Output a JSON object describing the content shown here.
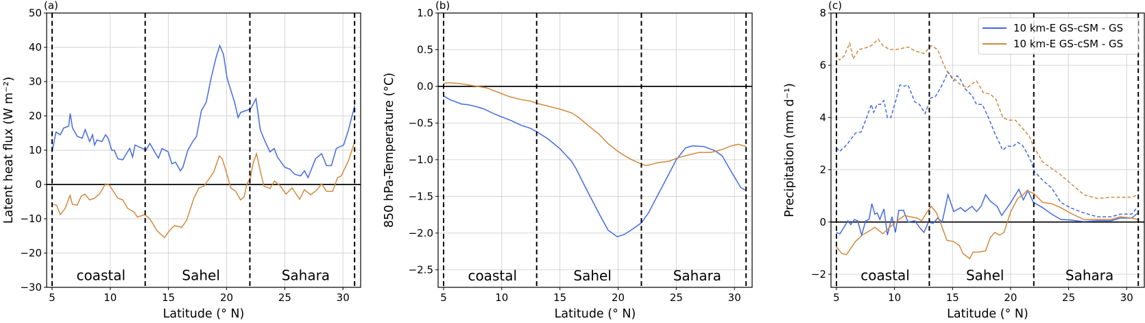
{
  "colors": {
    "blue": "#4169e1",
    "orange": "#d2873c"
  },
  "chart_data": [
    {
      "type": "line",
      "panel_label": "(a)",
      "xlabel": "Latitude (° N)",
      "ylabel": "Latent heat flux (W m⁻²)",
      "xlim": [
        4.53,
        31.52
      ],
      "ylim": [
        -30,
        50
      ],
      "xticks": [
        5,
        10,
        15,
        20,
        25,
        30
      ],
      "yticks": [
        -30,
        -20,
        -10,
        0,
        10,
        20,
        30,
        40,
        50
      ],
      "ytick_labels": [
        "−30",
        "−20",
        "−10",
        "0",
        "10",
        "20",
        "30",
        "40",
        "50"
      ],
      "grid": true,
      "zero_line": 0,
      "region_boundaries": [
        5,
        13,
        22,
        31
      ],
      "regions": [
        {
          "label": "coastal",
          "x": 9.2,
          "y": -26.5
        },
        {
          "label": "Sahel",
          "x": 17.8,
          "y": -26.5
        },
        {
          "label": "Sahara",
          "x": 26.8,
          "y": -26.5
        }
      ],
      "series": [
        {
          "name": "10 km-E GS-cSM - GS",
          "color": "blue",
          "dash": false,
          "x": [
            5.0,
            5.34,
            5.7,
            6.01,
            6.43,
            6.56,
            6.75,
            7.17,
            7.59,
            7.85,
            8.23,
            8.48,
            8.65,
            8.86,
            9.28,
            9.6,
            9.81,
            10.13,
            10.34,
            10.65,
            11.08,
            11.39,
            11.67,
            11.92,
            12.13,
            12.76,
            13.08,
            13.4,
            13.82,
            14.14,
            14.45,
            14.98,
            15.3,
            15.61,
            16.03,
            16.24,
            16.67,
            17.09,
            17.41,
            17.83,
            18.25,
            18.67,
            19.09,
            19.41,
            19.73,
            20.04,
            20.36,
            20.68,
            20.99,
            21.2,
            21.62,
            22.05,
            22.53,
            22.89,
            23.31,
            23.73,
            24.09,
            24.37,
            25.0,
            25.42,
            25.84,
            26.37,
            26.69,
            27.0,
            27.64,
            28.16,
            28.59,
            29.01,
            29.43,
            30.06,
            30.48,
            31.01
          ],
          "y": [
            9.5,
            15.3,
            14.5,
            16.5,
            17,
            20.7,
            16.5,
            14,
            13.5,
            16,
            12.5,
            14.5,
            11.5,
            13,
            12.5,
            14.5,
            13.5,
            10,
            10,
            7.5,
            7.2,
            9,
            10.5,
            8,
            11.5,
            10.5,
            10,
            12,
            9.5,
            7.7,
            10.5,
            9.5,
            6,
            6.5,
            4,
            5,
            10,
            12.5,
            14,
            21.5,
            24,
            31,
            37,
            40.5,
            38,
            31,
            27.5,
            24,
            19.5,
            21,
            21.5,
            22,
            25,
            16,
            12.5,
            9.5,
            10.5,
            8,
            5,
            4.5,
            3,
            2.5,
            4,
            2,
            7.5,
            9,
            5.5,
            5.5,
            10.5,
            11.5,
            16,
            23
          ]
        },
        {
          "name": "10 km-E GS-cSM - GS",
          "color": "orange",
          "dash": false,
          "x": [
            5.0,
            5.38,
            5.7,
            6.12,
            6.54,
            6.75,
            7.17,
            7.49,
            7.81,
            8.23,
            8.65,
            9.07,
            9.6,
            9.92,
            10.65,
            11.08,
            11.5,
            12.03,
            12.34,
            12.97,
            13.4,
            14.03,
            14.66,
            15.08,
            15.51,
            16.14,
            16.56,
            17.19,
            17.62,
            18.04,
            18.46,
            18.88,
            19.37,
            19.62,
            19.94,
            20.36,
            20.78,
            21.2,
            21.52,
            21.73,
            22.05,
            22.26,
            22.57,
            22.89,
            23.21,
            23.73,
            24.11,
            24.58,
            25.11,
            25.63,
            26.27,
            26.69,
            27.22,
            27.74,
            28.16,
            28.59,
            29.11,
            29.54,
            29.85,
            30.48,
            31.0
          ],
          "y": [
            -5.8,
            -6,
            -8.8,
            -7,
            -3.2,
            -5.8,
            -6,
            -3.5,
            -2.8,
            -4.5,
            -4,
            -2.8,
            0.2,
            -0.2,
            -4,
            -4.5,
            -7,
            -8,
            -9.5,
            -8.8,
            -10,
            -13.5,
            -15.5,
            -13.5,
            -12,
            -12.5,
            -10.5,
            -4,
            -1,
            -0.5,
            1.5,
            3.5,
            8.3,
            7.5,
            4,
            -1,
            -2,
            -4.5,
            -3.5,
            0,
            2,
            6,
            9,
            4,
            -0.5,
            -1.2,
            1,
            -0.3,
            -2.8,
            -1,
            -4.3,
            -1.5,
            -3,
            -1.7,
            0.2,
            -2,
            -2,
            2,
            2.5,
            7,
            12.5
          ]
        }
      ]
    },
    {
      "type": "line",
      "panel_label": "(b)",
      "xlabel": "Latitude (° N)",
      "ylabel": "850 hPa-Temperature (°C)",
      "xlim": [
        4.53,
        31.52
      ],
      "ylim": [
        -2.74,
        1.0
      ],
      "xticks": [
        5,
        10,
        15,
        20,
        25,
        30
      ],
      "yticks": [
        -2.5,
        -2.0,
        -1.5,
        -1.0,
        -0.5,
        0.0,
        0.5,
        1.0
      ],
      "ytick_labels": [
        "−2.5",
        "−2.0",
        "−1.5",
        "−1.0",
        "−0.5",
        "0.0",
        "0.5",
        "1.0"
      ],
      "grid": true,
      "zero_line": 0,
      "region_boundaries": [
        5,
        13,
        22,
        31
      ],
      "regions": [
        {
          "label": "coastal",
          "x": 9.2,
          "y": -2.58
        },
        {
          "label": "Sahel",
          "x": 17.8,
          "y": -2.58
        },
        {
          "label": "Sahara",
          "x": 26.8,
          "y": -2.58
        }
      ],
      "series": [
        {
          "name": "10 km-E GS-cSM - GS",
          "color": "blue",
          "dash": false,
          "x": [
            5.0,
            5.53,
            6.52,
            7.11,
            7.9,
            8.49,
            9.28,
            10.07,
            10.86,
            11.65,
            12.44,
            13.03,
            14.01,
            15.0,
            15.99,
            16.38,
            17.17,
            18.35,
            19.14,
            19.93,
            20.52,
            21.11,
            22.0,
            22.63,
            23.42,
            24.21,
            25.0,
            25.79,
            26.39,
            27.38,
            28.36,
            28.96,
            29.75,
            30.54,
            31.0
          ],
          "y": [
            -0.13,
            -0.18,
            -0.24,
            -0.25,
            -0.28,
            -0.31,
            -0.37,
            -0.42,
            -0.47,
            -0.53,
            -0.57,
            -0.62,
            -0.72,
            -0.85,
            -1.02,
            -1.12,
            -1.37,
            -1.73,
            -1.96,
            -2.05,
            -2.02,
            -1.96,
            -1.86,
            -1.72,
            -1.48,
            -1.24,
            -1.0,
            -0.84,
            -0.81,
            -0.82,
            -0.88,
            -0.95,
            -1.17,
            -1.38,
            -1.42
          ]
        },
        {
          "name": "10 km-E GS-cSM - GS",
          "color": "orange",
          "dash": false,
          "x": [
            5.0,
            5.43,
            6.32,
            7.11,
            7.9,
            8.69,
            9.67,
            10.66,
            11.65,
            12.44,
            13.03,
            14.21,
            15.0,
            15.99,
            16.58,
            17.56,
            18.35,
            19.14,
            19.93,
            20.92,
            22.0,
            22.43,
            23.42,
            24.41,
            25.2,
            26.19,
            26.98,
            27.97,
            28.96,
            29.75,
            30.34,
            31.0
          ],
          "y": [
            0.04,
            0.05,
            0.04,
            0.02,
            0.0,
            -0.02,
            -0.08,
            -0.14,
            -0.18,
            -0.2,
            -0.23,
            -0.28,
            -0.31,
            -0.36,
            -0.42,
            -0.55,
            -0.65,
            -0.78,
            -0.88,
            -0.98,
            -1.06,
            -1.08,
            -1.04,
            -1.02,
            -0.97,
            -0.93,
            -0.9,
            -0.9,
            -0.86,
            -0.81,
            -0.79,
            -0.82
          ]
        }
      ]
    },
    {
      "type": "line",
      "panel_label": "(c)",
      "xlabel": "Latitude (° N)",
      "ylabel": "Precipitation (mm d⁻¹)",
      "xlim": [
        4.53,
        31.52
      ],
      "ylim": [
        -2.5,
        8
      ],
      "xticks": [
        5,
        10,
        15,
        20,
        25,
        30
      ],
      "yticks": [
        -2,
        0,
        2,
        4,
        6,
        8
      ],
      "ytick_labels": [
        "−2",
        "0",
        "2",
        "4",
        "6",
        "8"
      ],
      "grid": true,
      "zero_line": 0,
      "region_boundaries": [
        5,
        13,
        22,
        31
      ],
      "regions": [
        {
          "label": "coastal",
          "x": 9.2,
          "y": -2.04
        },
        {
          "label": "Sahel",
          "x": 17.8,
          "y": -2.04
        },
        {
          "label": "Sahara",
          "x": 26.8,
          "y": -2.04
        }
      ],
      "legend": {
        "placement": "top-right",
        "entries": [
          {
            "label": "10 km-E GS-cSM - GS",
            "color": "blue"
          },
          {
            "label": "10 km-E GS-cSM - GS",
            "color": "orange"
          }
        ]
      },
      "series": [
        {
          "name": "10 km-E GS-cSM - GS",
          "color": "blue",
          "dash": false,
          "x": [
            5.0,
            5.3,
            5.65,
            5.98,
            6.24,
            6.54,
            6.83,
            7.17,
            7.52,
            7.81,
            8.05,
            8.31,
            8.5,
            8.74,
            9.09,
            9.39,
            9.78,
            10.08,
            10.37,
            10.77,
            11.16,
            11.75,
            12.15,
            12.54,
            12.93,
            13.33,
            13.72,
            14.11,
            14.61,
            15.1,
            15.69,
            16.08,
            16.67,
            17.07,
            17.46,
            17.85,
            18.25,
            18.84,
            19.23,
            19.63,
            20.02,
            20.71,
            21.1,
            21.5,
            21.97,
            22.76,
            23.54,
            24.33,
            25.12,
            26.3,
            27.48,
            28.66,
            29.45,
            30.43,
            30.98
          ],
          "y": [
            -0.4,
            -0.45,
            -0.2,
            0.05,
            -0.1,
            0.1,
            0.05,
            -0.5,
            0.05,
            0.1,
            0.7,
            0.3,
            0.35,
            0.1,
            0.5,
            -0.5,
            0.2,
            -0.4,
            0.45,
            0.45,
            0,
            0.05,
            -0.2,
            -0.4,
            0,
            -0.05,
            0.15,
            0,
            1.05,
            0.4,
            0.55,
            0.4,
            0.6,
            0.4,
            0.6,
            1.05,
            0.8,
            0.6,
            0.25,
            0.5,
            0.75,
            1.25,
            0.85,
            1.2,
            0.75,
            0.55,
            0.3,
            0.1,
            0.08,
            0.02,
            0.05,
            0.05,
            0.15,
            0.15,
            0.35
          ]
        },
        {
          "name": "10 km-E GS-cSM - GS (dashed)",
          "color": "blue",
          "dash": true,
          "x": [
            5.0,
            5.26,
            5.65,
            6.04,
            6.63,
            7.13,
            7.52,
            8.01,
            8.21,
            8.5,
            8.8,
            9.09,
            9.39,
            9.69,
            10.08,
            10.47,
            10.87,
            11.16,
            11.75,
            12.15,
            12.64,
            13.13,
            13.52,
            13.92,
            14.21,
            14.61,
            15.1,
            15.39,
            15.69,
            16.08,
            16.67,
            17.07,
            17.56,
            18.05,
            18.64,
            19.33,
            19.72,
            20.22,
            20.61,
            21.0,
            21.4,
            21.79,
            22.03,
            22.76,
            23.54,
            24.33,
            25.12,
            26.3,
            27.48,
            28.66,
            29.45,
            30.43,
            30.98
          ],
          "y": [
            2.85,
            2.7,
            2.85,
            3.05,
            3.4,
            3.45,
            3.9,
            4.5,
            4.2,
            4.5,
            4.5,
            4.65,
            4.0,
            4.0,
            4.6,
            5.25,
            5.2,
            5.25,
            4.6,
            4.5,
            4.15,
            4.75,
            4.8,
            5.1,
            5.35,
            5.75,
            5.4,
            5.6,
            5.45,
            5.1,
            4.85,
            4.5,
            4.5,
            4.05,
            3.4,
            2.75,
            2.9,
            2.9,
            3.05,
            2.95,
            2.65,
            2.3,
            1.95,
            1.6,
            1.3,
            0.75,
            0.55,
            0.35,
            0.2,
            0.2,
            0.3,
            0.3,
            0.6
          ]
        },
        {
          "name": "10 km-E GS-cSM - GS",
          "color": "orange",
          "dash": false,
          "x": [
            5.0,
            5.45,
            5.85,
            6.24,
            6.63,
            7.22,
            7.81,
            8.31,
            8.6,
            9.0,
            9.59,
            10.37,
            10.87,
            11.36,
            11.95,
            12.34,
            12.83,
            13.17,
            13.62,
            14.02,
            14.51,
            15.1,
            15.59,
            15.89,
            16.48,
            16.77,
            17.26,
            17.85,
            18.25,
            18.64,
            19.04,
            19.43,
            20.02,
            20.61,
            21.1,
            21.4,
            21.99,
            22.76,
            23.54,
            24.33,
            25.12,
            26.3,
            27.48,
            28.66,
            29.45,
            30.43,
            30.98
          ],
          "y": [
            -0.95,
            -1.2,
            -1.25,
            -1.0,
            -0.75,
            -0.5,
            -0.35,
            -0.2,
            -0.3,
            -0.45,
            -0.2,
            0.1,
            0.25,
            0.2,
            0.15,
            0.05,
            0.4,
            0.6,
            0.35,
            -0.1,
            -0.7,
            -0.75,
            -0.9,
            -1.2,
            -1.4,
            -1.15,
            -1.15,
            -1.1,
            -0.6,
            -0.4,
            -0.5,
            -0.4,
            0.4,
            0.9,
            1.05,
            1.2,
            1.1,
            0.75,
            0.7,
            0.55,
            0.35,
            0.1,
            0.1,
            0.1,
            0.2,
            0.15,
            0.1
          ]
        },
        {
          "name": "10 km-E GS-cSM - GS (dashed)",
          "color": "orange",
          "dash": true,
          "x": [
            5.0,
            5.26,
            5.65,
            6.14,
            6.44,
            6.93,
            7.42,
            8.01,
            8.6,
            9.0,
            9.59,
            10.18,
            11.16,
            11.75,
            12.54,
            13.17,
            13.72,
            14.21,
            14.61,
            15.1,
            15.69,
            16.28,
            16.87,
            17.07,
            17.66,
            18.25,
            18.74,
            19.33,
            19.82,
            20.41,
            21.0,
            21.6,
            22.03,
            22.76,
            23.54,
            24.33,
            25.12,
            26.3,
            27.48,
            28.66,
            29.45,
            30.43,
            30.98
          ],
          "y": [
            6.45,
            6.2,
            6.35,
            6.85,
            6.25,
            6.6,
            6.65,
            6.75,
            7.0,
            6.75,
            6.6,
            6.6,
            6.7,
            6.55,
            6.45,
            6.75,
            6.6,
            6.05,
            5.7,
            5.5,
            5.25,
            5.15,
            5.35,
            5.4,
            4.95,
            4.9,
            4.7,
            4.0,
            3.9,
            3.9,
            3.6,
            3.3,
            2.85,
            2.3,
            2.05,
            1.8,
            1.5,
            1.05,
            0.9,
            0.95,
            0.95,
            0.95,
            1.05
          ]
        }
      ]
    }
  ]
}
